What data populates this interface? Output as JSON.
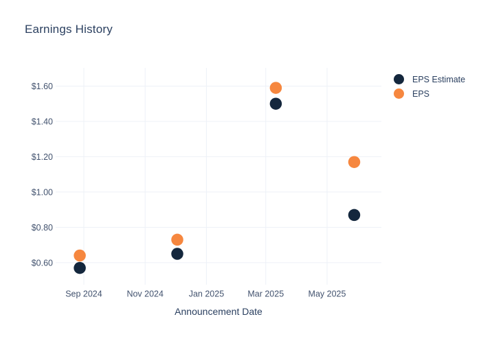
{
  "chart_data": {
    "type": "scatter",
    "title": "Earnings History",
    "xlabel": "Announcement Date",
    "ylabel": "",
    "grid": true,
    "legend_position": "right",
    "marker_diameter_px": 17.5,
    "x_axis": {
      "range": [
        "2024-08-04",
        "2025-06-24"
      ],
      "ticks": [
        {
          "label": "Sep 2024",
          "date": "2024-09-01"
        },
        {
          "label": "Nov 2024",
          "date": "2024-11-01"
        },
        {
          "label": "Jan 2025",
          "date": "2025-01-01"
        },
        {
          "label": "Mar 2025",
          "date": "2025-03-01"
        },
        {
          "label": "May 2025",
          "date": "2025-05-01"
        }
      ]
    },
    "y_axis": {
      "range": [
        0.475,
        1.703
      ],
      "tick_prefix": "$",
      "ticks": [
        {
          "label": "$1.60",
          "value": 1.6
        },
        {
          "label": "$1.40",
          "value": 1.4
        },
        {
          "label": "$1.20",
          "value": 1.2
        },
        {
          "label": "$1.00",
          "value": 1.0
        },
        {
          "label": "$0.80",
          "value": 0.8
        },
        {
          "label": "$0.60",
          "value": 0.6
        }
      ]
    },
    "series": [
      {
        "name": "EPS Estimate",
        "color": "#14273d",
        "points": [
          {
            "date": "2024-08-28",
            "value": 0.57
          },
          {
            "date": "2024-12-03",
            "value": 0.65
          },
          {
            "date": "2025-03-11",
            "value": 1.5
          },
          {
            "date": "2025-05-28",
            "value": 0.87
          }
        ]
      },
      {
        "name": "EPS",
        "color": "#f6873f",
        "points": [
          {
            "date": "2024-08-28",
            "value": 0.64
          },
          {
            "date": "2024-12-03",
            "value": 0.73
          },
          {
            "date": "2025-03-11",
            "value": 1.59
          },
          {
            "date": "2025-05-28",
            "value": 1.17
          }
        ]
      }
    ]
  },
  "colors": {
    "title": "#2a3f5f",
    "tick_label": "#42526e",
    "gridline": "#edf1f7",
    "background": "#ffffff"
  }
}
